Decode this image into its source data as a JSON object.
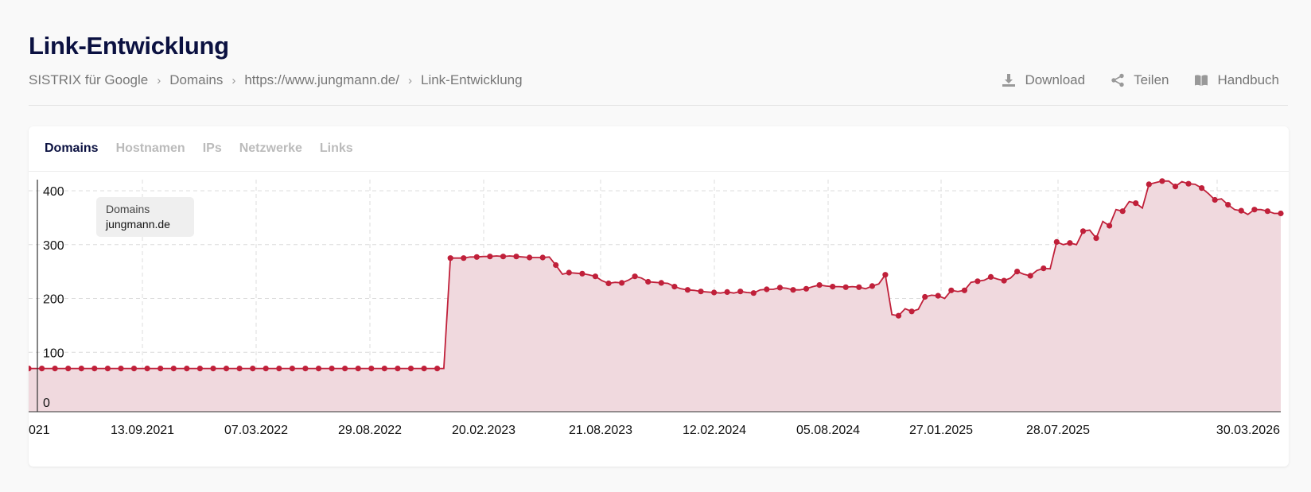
{
  "page": {
    "title": "Link-Entwicklung",
    "breadcrumb": [
      "SISTRIX für Google",
      "Domains",
      "https://www.jungmann.de/",
      "Link-Entwicklung"
    ]
  },
  "actions": {
    "download": {
      "label": "Download",
      "icon": "download-icon"
    },
    "share": {
      "label": "Teilen",
      "icon": "share-icon"
    },
    "manual": {
      "label": "Handbuch",
      "icon": "book-icon"
    }
  },
  "tabs": [
    {
      "label": "Domains",
      "active": true
    },
    {
      "label": "Hostnamen",
      "active": false
    },
    {
      "label": "IPs",
      "active": false
    },
    {
      "label": "Netzwerke",
      "active": false
    },
    {
      "label": "Links",
      "active": false
    }
  ],
  "legend": {
    "label": "Domains",
    "value": "jungmann.de"
  },
  "colors": {
    "series": "#c0203a",
    "fill": "#f0d9de",
    "title": "#0b1141"
  },
  "chart_data": {
    "type": "area",
    "title": "",
    "xlabel": "",
    "ylabel": "",
    "ylim": [
      0,
      420
    ],
    "y_ticks": [
      0,
      100,
      200,
      300,
      400
    ],
    "x_tick_labels": [
      "13.09.2021",
      "07.03.2022",
      "29.08.2022",
      "20.02.2023",
      "21.08.2023",
      "12.02.2024",
      "05.08.2024",
      "27.01.2025",
      "28.07.2025",
      "30.03.2026"
    ],
    "x_first_tick_partial": "021",
    "grid": true,
    "legend_position": "top-left",
    "series": [
      {
        "name": "jungmann.de",
        "values": [
          70,
          70,
          70,
          70,
          70,
          70,
          70,
          70,
          70,
          70,
          70,
          70,
          70,
          70,
          70,
          70,
          70,
          70,
          70,
          70,
          70,
          70,
          70,
          70,
          70,
          70,
          70,
          70,
          70,
          70,
          70,
          70,
          70,
          70,
          70,
          70,
          70,
          70,
          70,
          70,
          70,
          70,
          70,
          70,
          70,
          70,
          70,
          70,
          70,
          70,
          70,
          70,
          70,
          70,
          70,
          70,
          70,
          70,
          70,
          70,
          70,
          70,
          70,
          70,
          275,
          275,
          275,
          277,
          277,
          278,
          278,
          279,
          278,
          279,
          278,
          277,
          276,
          276,
          276,
          277,
          262,
          245,
          248,
          247,
          246,
          244,
          241,
          233,
          228,
          230,
          229,
          234,
          241,
          238,
          231,
          230,
          229,
          228,
          222,
          218,
          216,
          215,
          213,
          212,
          211,
          210,
          212,
          210,
          213,
          211,
          210,
          216,
          217,
          217,
          220,
          219,
          216,
          216,
          218,
          222,
          225,
          223,
          222,
          222,
          221,
          222,
          221,
          218,
          223,
          227,
          244,
          170,
          168,
          181,
          176,
          180,
          203,
          206,
          205,
          200,
          215,
          213,
          215,
          230,
          232,
          234,
          240,
          236,
          233,
          238,
          250,
          245,
          242,
          252,
          256,
          255,
          305,
          300,
          303,
          300,
          325,
          327,
          312,
          343,
          335,
          365,
          362,
          380,
          377,
          368,
          412,
          415,
          418,
          418,
          408,
          417,
          413,
          412,
          405,
          395,
          383,
          385,
          374,
          365,
          363,
          356,
          365,
          365,
          362,
          358,
          358
        ]
      }
    ]
  }
}
